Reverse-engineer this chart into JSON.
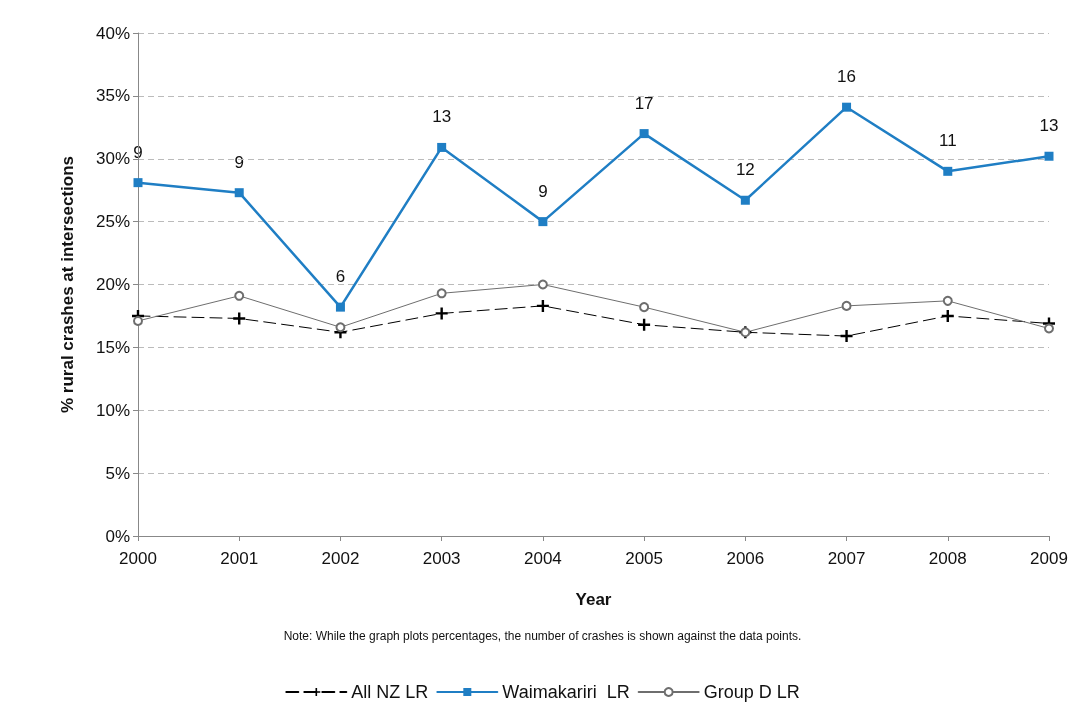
{
  "chart_data": {
    "type": "line",
    "xlabel": "Year",
    "ylabel": "% rural crashes at intersections",
    "categories": [
      "2000",
      "2001",
      "2002",
      "2003",
      "2004",
      "2005",
      "2006",
      "2007",
      "2008",
      "2009"
    ],
    "series": [
      {
        "name": "All NZ LR",
        "color": "#000000",
        "marker": "cross",
        "line_style": "dashed",
        "values": [
          17.5,
          17.3,
          16.2,
          17.7,
          18.3,
          16.8,
          16.2,
          15.9,
          17.5,
          16.9
        ]
      },
      {
        "name": "Waimakariri  LR",
        "color": "#1f7ec4",
        "marker": "square",
        "line_style": "solid",
        "values": [
          28.1,
          27.3,
          18.2,
          30.9,
          25.0,
          32.0,
          26.7,
          34.1,
          29.0,
          30.2
        ]
      },
      {
        "name": "Group D LR",
        "color": "#6e6e6e",
        "marker": "circle",
        "line_style": "solid",
        "values": [
          17.1,
          19.1,
          16.6,
          19.3,
          20.0,
          18.2,
          16.2,
          18.3,
          18.7,
          16.5
        ]
      }
    ],
    "ylim": [
      0,
      40
    ],
    "yticks": [
      {
        "value": 0,
        "label": "0%"
      },
      {
        "value": 5,
        "label": "5%"
      },
      {
        "value": 10,
        "label": "10%"
      },
      {
        "value": 15,
        "label": "15%"
      },
      {
        "value": 20,
        "label": "20%"
      },
      {
        "value": 25,
        "label": "25%"
      },
      {
        "value": 30,
        "label": "30%"
      },
      {
        "value": 35,
        "label": "35%"
      },
      {
        "value": 40,
        "label": "40%"
      }
    ],
    "grid": "y",
    "legend": "bottom",
    "annotations": [
      "Note: While the graph plots percentages, the number of crashes is shown against the data points.",
      {
        "text": "9",
        "x": "2000",
        "y": 28.1
      },
      {
        "text": "9",
        "x": "2001",
        "y": 27.3
      },
      {
        "text": "6",
        "x": "2002",
        "y": 18.2
      },
      {
        "text": "13",
        "x": "2003",
        "y": 30.9
      },
      {
        "text": "9",
        "x": "2004",
        "y": 25.0
      },
      {
        "text": "17",
        "x": "2005",
        "y": 32.0
      },
      {
        "text": "12",
        "x": "2006",
        "y": 26.7
      },
      {
        "text": "16",
        "x": "2007",
        "y": 34.1
      },
      {
        "text": "11",
        "x": "2008",
        "y": 29.0
      },
      {
        "text": "13",
        "x": "2009",
        "y": 30.2
      }
    ]
  }
}
